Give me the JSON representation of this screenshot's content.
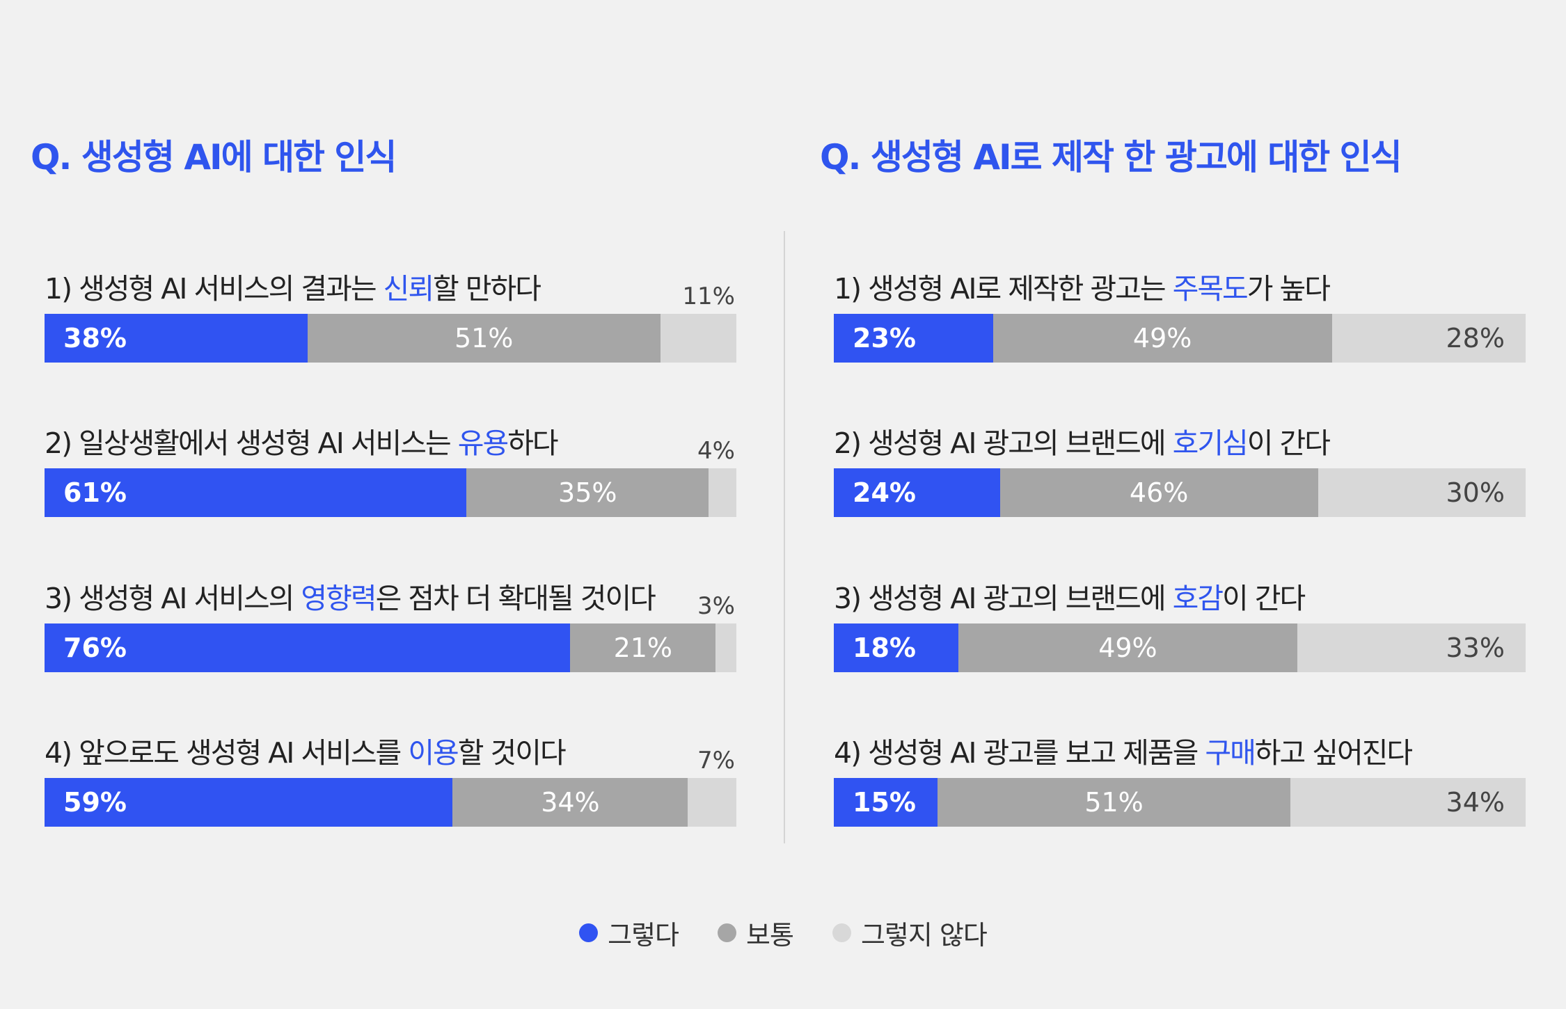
{
  "legend": [
    {
      "label": "그렇다",
      "color": "#3053f2"
    },
    {
      "label": "보통",
      "color": "#a6a6a6"
    },
    {
      "label": "그렇지 않다",
      "color": "#d8d8d8"
    }
  ],
  "chart_data": [
    {
      "type": "bar",
      "orientation": "horizontal-stacked",
      "title": "Q. 생성형 AI에 대한 인식",
      "series_names": [
        "그렇다",
        "보통",
        "그렇지 않다"
      ],
      "items": [
        {
          "label_parts": [
            "1) 생성형 AI 서비스의 결과는 ",
            "신뢰",
            "할 만하다"
          ],
          "values": [
            38,
            51,
            11
          ],
          "labels": [
            "38%",
            "51%",
            "11%"
          ]
        },
        {
          "label_parts": [
            "2) 일상생활에서 생성형 AI 서비스는 ",
            "유용",
            "하다"
          ],
          "values": [
            61,
            35,
            4
          ],
          "labels": [
            "61%",
            "35%",
            "4%"
          ]
        },
        {
          "label_parts": [
            "3) 생성형 AI 서비스의 ",
            "영향력",
            "은 점차 더 확대될 것이다"
          ],
          "values": [
            76,
            21,
            3
          ],
          "labels": [
            "76%",
            "21%",
            "3%"
          ]
        },
        {
          "label_parts": [
            "4) 앞으로도 생성형 AI 서비스를 ",
            "이용",
            "할 것이다"
          ],
          "values": [
            59,
            34,
            7
          ],
          "labels": [
            "59%",
            "34%",
            "7%"
          ]
        }
      ]
    },
    {
      "type": "bar",
      "orientation": "horizontal-stacked",
      "title": "Q. 생성형 AI로 제작 한 광고에 대한 인식",
      "series_names": [
        "그렇다",
        "보통",
        "그렇지 않다"
      ],
      "items": [
        {
          "label_parts": [
            "1) 생성형 AI로 제작한 광고는 ",
            "주목도",
            "가 높다"
          ],
          "values": [
            23,
            49,
            28
          ],
          "labels": [
            "23%",
            "49%",
            "28%"
          ]
        },
        {
          "label_parts": [
            "2) 생성형 AI 광고의 브랜드에 ",
            "호기심",
            "이 간다"
          ],
          "values": [
            24,
            46,
            30
          ],
          "labels": [
            "24%",
            "46%",
            "30%"
          ]
        },
        {
          "label_parts": [
            "3) 생성형 AI 광고의 브랜드에 ",
            "호감",
            "이 간다"
          ],
          "values": [
            18,
            49,
            33
          ],
          "labels": [
            "18%",
            "49%",
            "33%"
          ]
        },
        {
          "label_parts": [
            "4) 생성형 AI 광고를 보고 제품을 ",
            "구매",
            "하고 싶어진다"
          ],
          "values": [
            15,
            51,
            34
          ],
          "labels": [
            "15%",
            "51%",
            "34%"
          ]
        }
      ]
    }
  ]
}
